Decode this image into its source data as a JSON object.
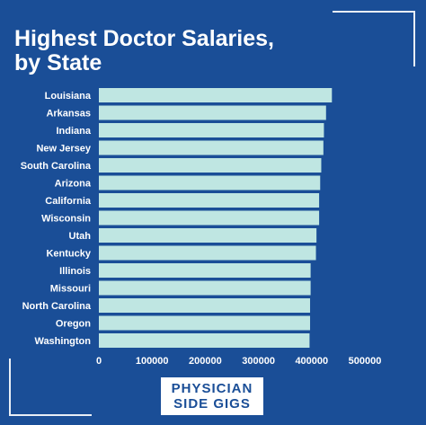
{
  "title_line1": "Highest Doctor Salaries,",
  "title_line2": "by State",
  "brand": {
    "line1": "PHYSICIAN",
    "line2": "SIDE GIGS"
  },
  "colors": {
    "background": "#1a4e97",
    "bar": "#bfe6e2",
    "text": "#ffffff"
  },
  "chart_data": {
    "type": "bar",
    "orientation": "horizontal",
    "title": "Highest Doctor Salaries, by State",
    "categories": [
      "Louisiana",
      "Arkansas",
      "Indiana",
      "New Jersey",
      "South Carolina",
      "Arizona",
      "California",
      "Wisconsin",
      "Utah",
      "Kentucky",
      "Illinois",
      "Missouri",
      "North Carolina",
      "Oregon",
      "Washington"
    ],
    "values": [
      438000,
      427000,
      423000,
      422000,
      418000,
      416000,
      414000,
      414000,
      409000,
      408000,
      398000,
      398000,
      397000,
      397000,
      396000
    ],
    "xticks": [
      "0",
      "100000",
      "200000",
      "300000",
      "400000",
      "500000"
    ],
    "xlim": [
      0,
      500000
    ],
    "grid": false,
    "legend": "none"
  }
}
